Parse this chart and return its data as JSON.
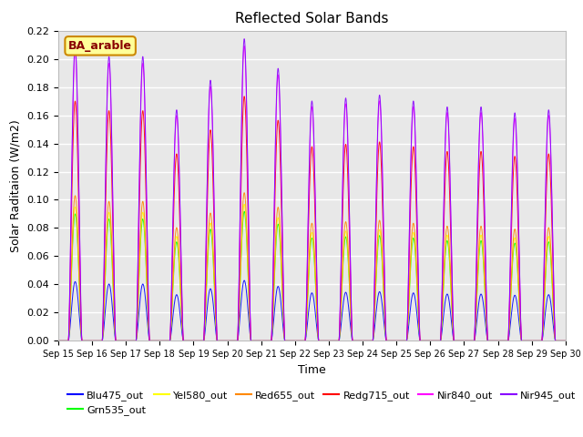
{
  "title": "Reflected Solar Bands",
  "xlabel": "Time",
  "ylabel": "Solar Raditaion (W/m2)",
  "ylim": [
    0,
    0.22
  ],
  "n_days": 15,
  "n_points_per_day": 288,
  "background_color": "#e8e8e8",
  "series_order": [
    "Blu475_out",
    "Grn535_out",
    "Yel580_out",
    "Red655_out",
    "Redg715_out",
    "Nir840_out",
    "Nir945_out"
  ],
  "series": {
    "Blu475_out": {
      "color": "#0000ff",
      "peak": 0.042
    },
    "Grn535_out": {
      "color": "#00ff00",
      "peak": 0.09
    },
    "Yel580_out": {
      "color": "#ffff00",
      "peak": 0.095
    },
    "Red655_out": {
      "color": "#ff8800",
      "peak": 0.103
    },
    "Redg715_out": {
      "color": "#ff0000",
      "peak": 0.17
    },
    "Nir840_out": {
      "color": "#ff00ff",
      "peak": 0.205
    },
    "Nir945_out": {
      "color": "#8800ff",
      "peak": 0.21
    }
  },
  "day_peak_scales": [
    1.0,
    0.96,
    0.96,
    0.78,
    0.88,
    1.02,
    0.92,
    0.81,
    0.82,
    0.83,
    0.81,
    0.79,
    0.79,
    0.77,
    0.78
  ],
  "tick_labels": [
    "Sep 15",
    "Sep 16",
    "Sep 17",
    "Sep 18",
    "Sep 19",
    "Sep 20",
    "Sep 21",
    "Sep 22",
    "Sep 23",
    "Sep 24",
    "Sep 25",
    "Sep 26",
    "Sep 27",
    "Sep 28",
    "Sep 29",
    "Sep 30"
  ],
  "legend_box_text": "BA_arable",
  "legend_box_facecolor": "#ffff99",
  "legend_box_edgecolor": "#cc8800",
  "legend_box_textcolor": "#880000",
  "figsize": [
    6.4,
    4.8
  ],
  "dpi": 100
}
